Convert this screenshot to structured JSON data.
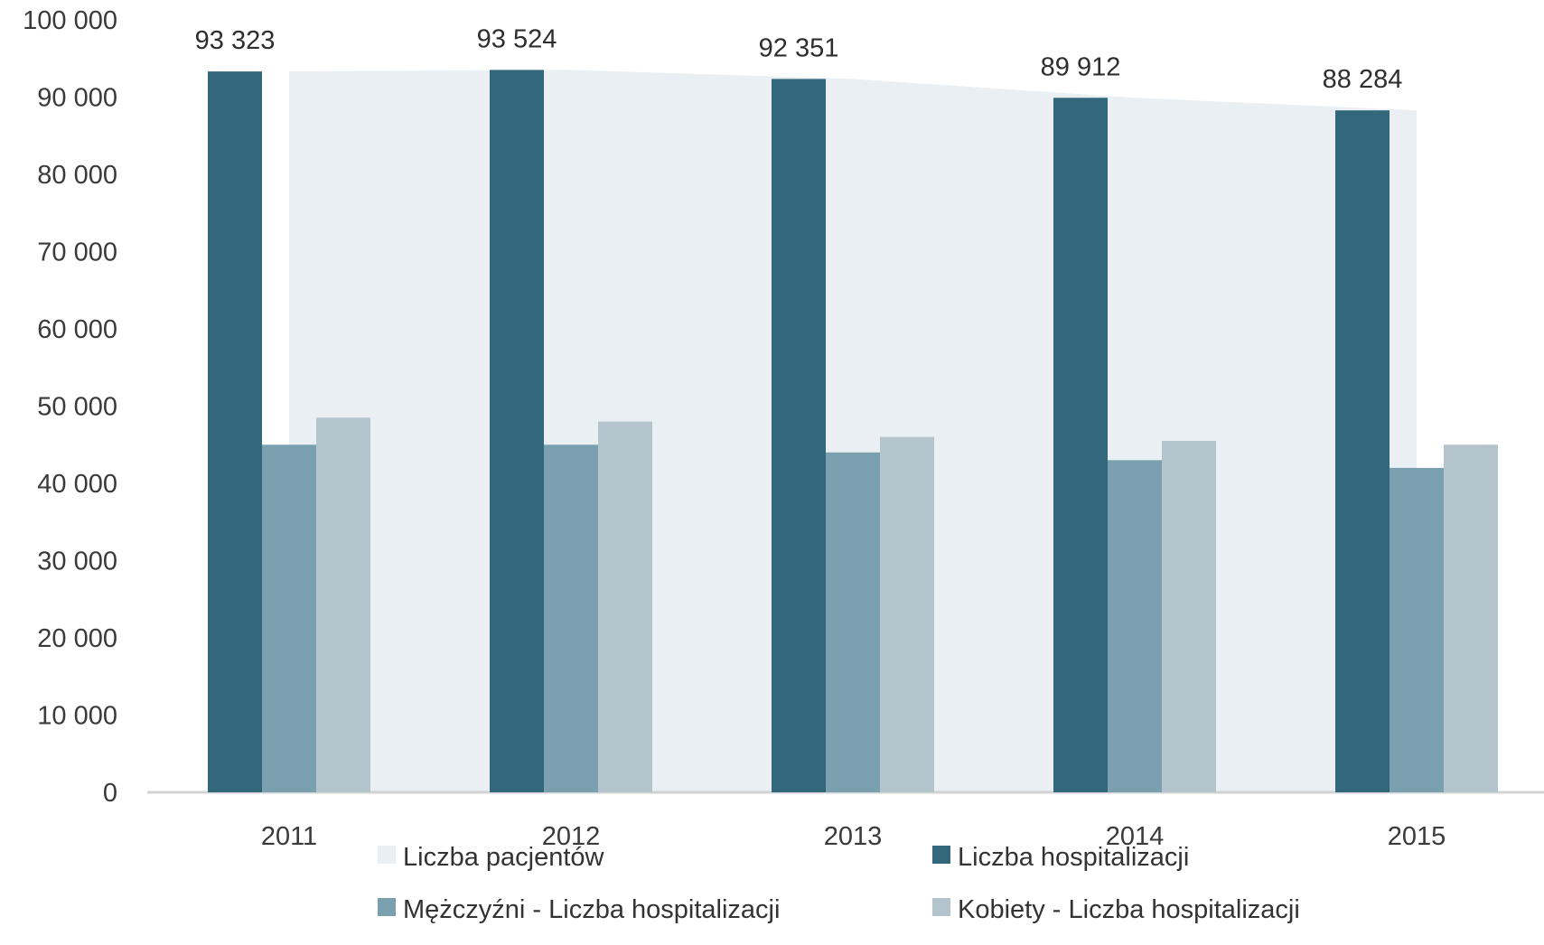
{
  "chart_data": {
    "type": "bar",
    "categories": [
      "2011",
      "2012",
      "2013",
      "2014",
      "2015"
    ],
    "ylim": [
      0,
      100000
    ],
    "yticks": [
      "0",
      "10 000",
      "20 000",
      "30 000",
      "40 000",
      "50 000",
      "60 000",
      "70 000",
      "80 000",
      "90 000",
      "100 000"
    ],
    "ytick_values": [
      0,
      10000,
      20000,
      30000,
      40000,
      50000,
      60000,
      70000,
      80000,
      90000,
      100000
    ],
    "grid": false,
    "legend_position": "bottom",
    "area_series": {
      "name": "Liczba pacjentów",
      "type": "area",
      "color": "#E9EFF2",
      "values": [
        93323,
        93524,
        92351,
        89912,
        88284
      ]
    },
    "series": [
      {
        "name": "Liczba hospitalizacji",
        "color": "#33677B",
        "values": [
          93323,
          93524,
          92351,
          89912,
          88284
        ],
        "labels": [
          "93 323",
          "93 524",
          "92 351",
          "89 912",
          "88 284"
        ]
      },
      {
        "name": "Mężczyźni - Liczba hospitalizacji",
        "color": "#7A9FAE",
        "values": [
          45000,
          45000,
          44000,
          43000,
          42000
        ]
      },
      {
        "name": "Kobiety - Liczba hospitalizacji",
        "color": "#B3C4CC",
        "values": [
          48500,
          48000,
          46000,
          45500,
          45000
        ]
      }
    ],
    "legend": [
      {
        "label": "Liczba pacjentów",
        "color": "#E9EFF2"
      },
      {
        "label": "Liczba hospitalizacji",
        "color": "#33677B"
      },
      {
        "label": "Mężczyźni - Liczba hospitalizacji",
        "color": "#7A9FAE"
      },
      {
        "label": "Kobiety - Liczba hospitalizacji",
        "color": "#B3C4CC"
      }
    ]
  }
}
